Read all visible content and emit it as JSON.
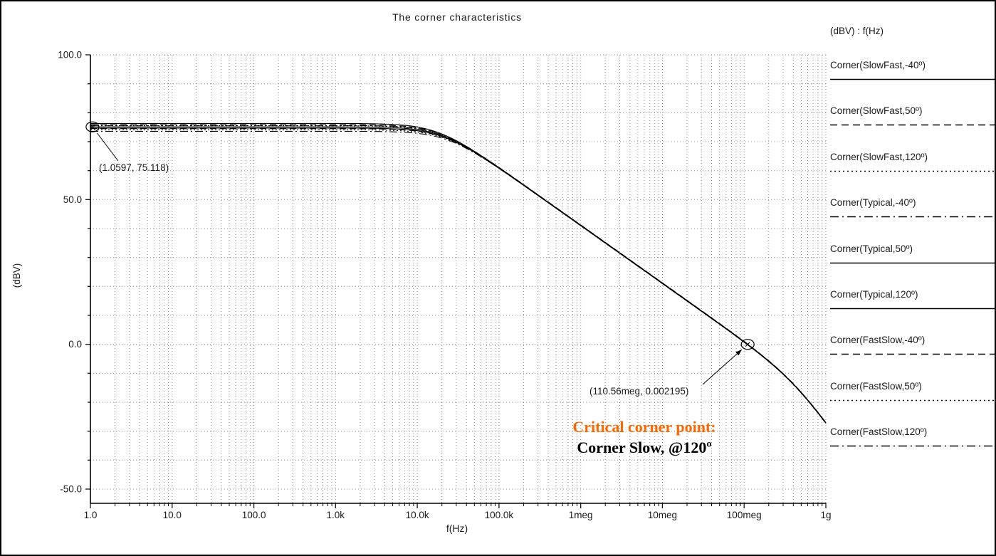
{
  "title": "The corner characteristics",
  "axes": {
    "ylabel": "(dBV)",
    "xlabel": "f(Hz)"
  },
  "legend": {
    "header": "(dBV) : f(Hz)",
    "items": [
      {
        "label": "Corner(SlowFast,-40º)",
        "dash": "solid"
      },
      {
        "label": "Corner(SlowFast,50º)",
        "dash": "dashed"
      },
      {
        "label": "Corner(SlowFast,120º)",
        "dash": "dotted"
      },
      {
        "label": "Corner(Typical,-40º)",
        "dash": "dashdot"
      },
      {
        "label": "Corner(Typical,50º)",
        "dash": "solid"
      },
      {
        "label": "Corner(Typical,120º)",
        "dash": "solid"
      },
      {
        "label": "Corner(FastSlow,-40º)",
        "dash": "dashed"
      },
      {
        "label": "Corner(FastSlow,50º)",
        "dash": "dotted"
      },
      {
        "label": "Corner(FastSlow,120º)",
        "dash": "dashdot"
      }
    ]
  },
  "annotations": {
    "low_point_label": "(1.0597, 75.118)",
    "high_point_label": "(110.56meg, 0.002195)",
    "critical_title": "Critical corner point:",
    "critical_value": "Corner Slow, @120º"
  },
  "colors": {
    "critical_title": "#ff6600",
    "curve": "#000000",
    "grid": "#8c8c8c"
  },
  "chart_data": {
    "type": "line",
    "title": "The corner characteristics",
    "xlabel": "f(Hz)",
    "ylabel": "(dBV)",
    "x_scale": "log",
    "xlim": [
      1,
      1000000000
    ],
    "ylim": [
      -50,
      100
    ],
    "grid": "dotted",
    "legend_position": "right",
    "x_ticks": [
      {
        "label": "1.0",
        "f": 1
      },
      {
        "label": "10.0",
        "f": 10
      },
      {
        "label": "100.0",
        "f": 100
      },
      {
        "label": "1.0k",
        "f": 1000
      },
      {
        "label": "10.0k",
        "f": 10000
      },
      {
        "label": "100.0k",
        "f": 100000
      },
      {
        "label": "1meg",
        "f": 1000000
      },
      {
        "label": "10meg",
        "f": 10000000
      },
      {
        "label": "100meg",
        "f": 100000000
      },
      {
        "label": "1g",
        "f": 1000000000
      }
    ],
    "y_ticks": [
      {
        "label": "100.0",
        "v": 100
      },
      {
        "label": "50.0",
        "v": 50
      },
      {
        "label": "0.0",
        "v": 0
      },
      {
        "label": "-50.0",
        "v": -50
      }
    ],
    "marked_points": [
      {
        "x": 1.0597,
        "y": 75.118,
        "label": "(1.0597, 75.118)"
      },
      {
        "x": 110560000,
        "y": 0.002195,
        "label": "(110.56meg, 0.002195)"
      }
    ],
    "series": [
      {
        "name": "Corner(SlowFast,-40º)",
        "dash": "solid",
        "dc_dbv": 76.3,
        "pole_hz": 17500,
        "pole2_hz": 420000000
      },
      {
        "name": "Corner(SlowFast,50º)",
        "dash": "dashed",
        "dc_dbv": 75.9,
        "pole_hz": 18500,
        "pole2_hz": 420000000
      },
      {
        "name": "Corner(SlowFast,120º)",
        "dash": "dotted",
        "dc_dbv": 75.5,
        "pole_hz": 19200,
        "pole2_hz": 420000000
      },
      {
        "name": "Corner(Typical,-40º)",
        "dash": "dashdot",
        "dc_dbv": 75.6,
        "pole_hz": 19000,
        "pole2_hz": 420000000
      },
      {
        "name": "Corner(Typical,50º)",
        "dash": "solid",
        "dc_dbv": 75.118,
        "pole_hz": 19800,
        "pole2_hz": 420000000
      },
      {
        "name": "Corner(Typical,120º)",
        "dash": "solid",
        "dc_dbv": 74.7,
        "pole_hz": 20600,
        "pole2_hz": 420000000
      },
      {
        "name": "Corner(FastSlow,-40º)",
        "dash": "dashed",
        "dc_dbv": 74.5,
        "pole_hz": 21200,
        "pole2_hz": 420000000
      },
      {
        "name": "Corner(FastSlow,50º)",
        "dash": "dotted",
        "dc_dbv": 74.1,
        "pole_hz": 22200,
        "pole2_hz": 420000000
      },
      {
        "name": "Corner(FastSlow,120º)",
        "dash": "dashdot",
        "dc_dbv": 73.6,
        "pole_hz": 23400,
        "pole2_hz": 420000000
      }
    ]
  }
}
